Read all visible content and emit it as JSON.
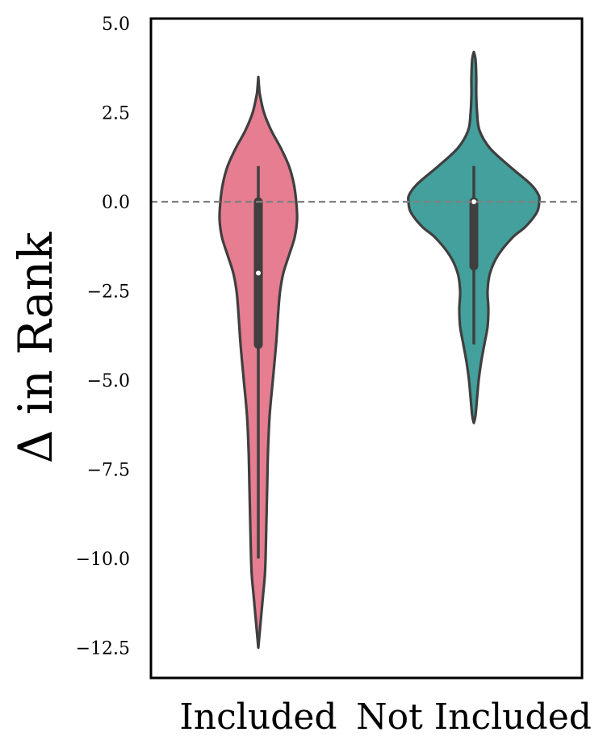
{
  "chart_data": {
    "type": "violin",
    "ylabel": "Δ in Rank",
    "xlabel": "",
    "categories": [
      "Included",
      "Not Included"
    ],
    "ylim": [
      -13.0,
      5.0
    ],
    "y_ticks": [
      5.0,
      2.5,
      0.0,
      -2.5,
      -5.0,
      -7.5,
      -10.0,
      -12.5
    ],
    "y_tick_labels": [
      "5.0",
      "2.5",
      "0.0",
      "−2.5",
      "−5.0",
      "−7.5",
      "−10.0",
      "−12.5"
    ],
    "reference_line": {
      "y": 0.0,
      "style": "dashed",
      "color": "#808080"
    },
    "grid": false,
    "series": [
      {
        "category": "Included",
        "color": "#e67d90",
        "median": -2.0,
        "q1": -4.0,
        "q3": 0.0,
        "whisker_low": -10.0,
        "whisker_high": 1.0,
        "min": -12.5,
        "max": 3.5,
        "density": [
          [
            3.5,
            0.0
          ],
          [
            3.2,
            0.01
          ],
          [
            3.0,
            0.02
          ],
          [
            2.5,
            0.07
          ],
          [
            2.0,
            0.16
          ],
          [
            1.5,
            0.28
          ],
          [
            1.0,
            0.38
          ],
          [
            0.5,
            0.44
          ],
          [
            0.0,
            0.47
          ],
          [
            -0.5,
            0.48
          ],
          [
            -1.0,
            0.45
          ],
          [
            -1.5,
            0.38
          ],
          [
            -2.0,
            0.31
          ],
          [
            -2.5,
            0.27
          ],
          [
            -3.0,
            0.25
          ],
          [
            -4.0,
            0.22
          ],
          [
            -5.0,
            0.18
          ],
          [
            -6.0,
            0.14
          ],
          [
            -7.0,
            0.12
          ],
          [
            -8.0,
            0.11
          ],
          [
            -9.0,
            0.1
          ],
          [
            -10.0,
            0.09
          ],
          [
            -10.5,
            0.08
          ],
          [
            -11.0,
            0.06
          ],
          [
            -11.5,
            0.04
          ],
          [
            -12.0,
            0.02
          ],
          [
            -12.5,
            0.0
          ]
        ]
      },
      {
        "category": "Not Included",
        "color": "#43a09c",
        "median": 0.0,
        "q1": -1.8,
        "q3": 0.0,
        "whisker_low": -4.0,
        "whisker_high": 1.0,
        "min": -6.2,
        "max": 4.2,
        "density": [
          [
            4.2,
            0.0
          ],
          [
            4.0,
            0.02
          ],
          [
            3.5,
            0.03
          ],
          [
            3.0,
            0.03
          ],
          [
            2.5,
            0.04
          ],
          [
            2.0,
            0.07
          ],
          [
            1.5,
            0.2
          ],
          [
            1.0,
            0.44
          ],
          [
            0.5,
            0.7
          ],
          [
            0.2,
            0.8
          ],
          [
            0.0,
            0.81
          ],
          [
            -0.3,
            0.78
          ],
          [
            -0.7,
            0.64
          ],
          [
            -1.0,
            0.48
          ],
          [
            -1.5,
            0.3
          ],
          [
            -2.0,
            0.2
          ],
          [
            -2.5,
            0.17
          ],
          [
            -3.0,
            0.18
          ],
          [
            -3.5,
            0.17
          ],
          [
            -4.0,
            0.13
          ],
          [
            -4.5,
            0.09
          ],
          [
            -5.0,
            0.06
          ],
          [
            -5.5,
            0.04
          ],
          [
            -6.0,
            0.02
          ],
          [
            -6.2,
            0.0
          ]
        ]
      }
    ]
  }
}
